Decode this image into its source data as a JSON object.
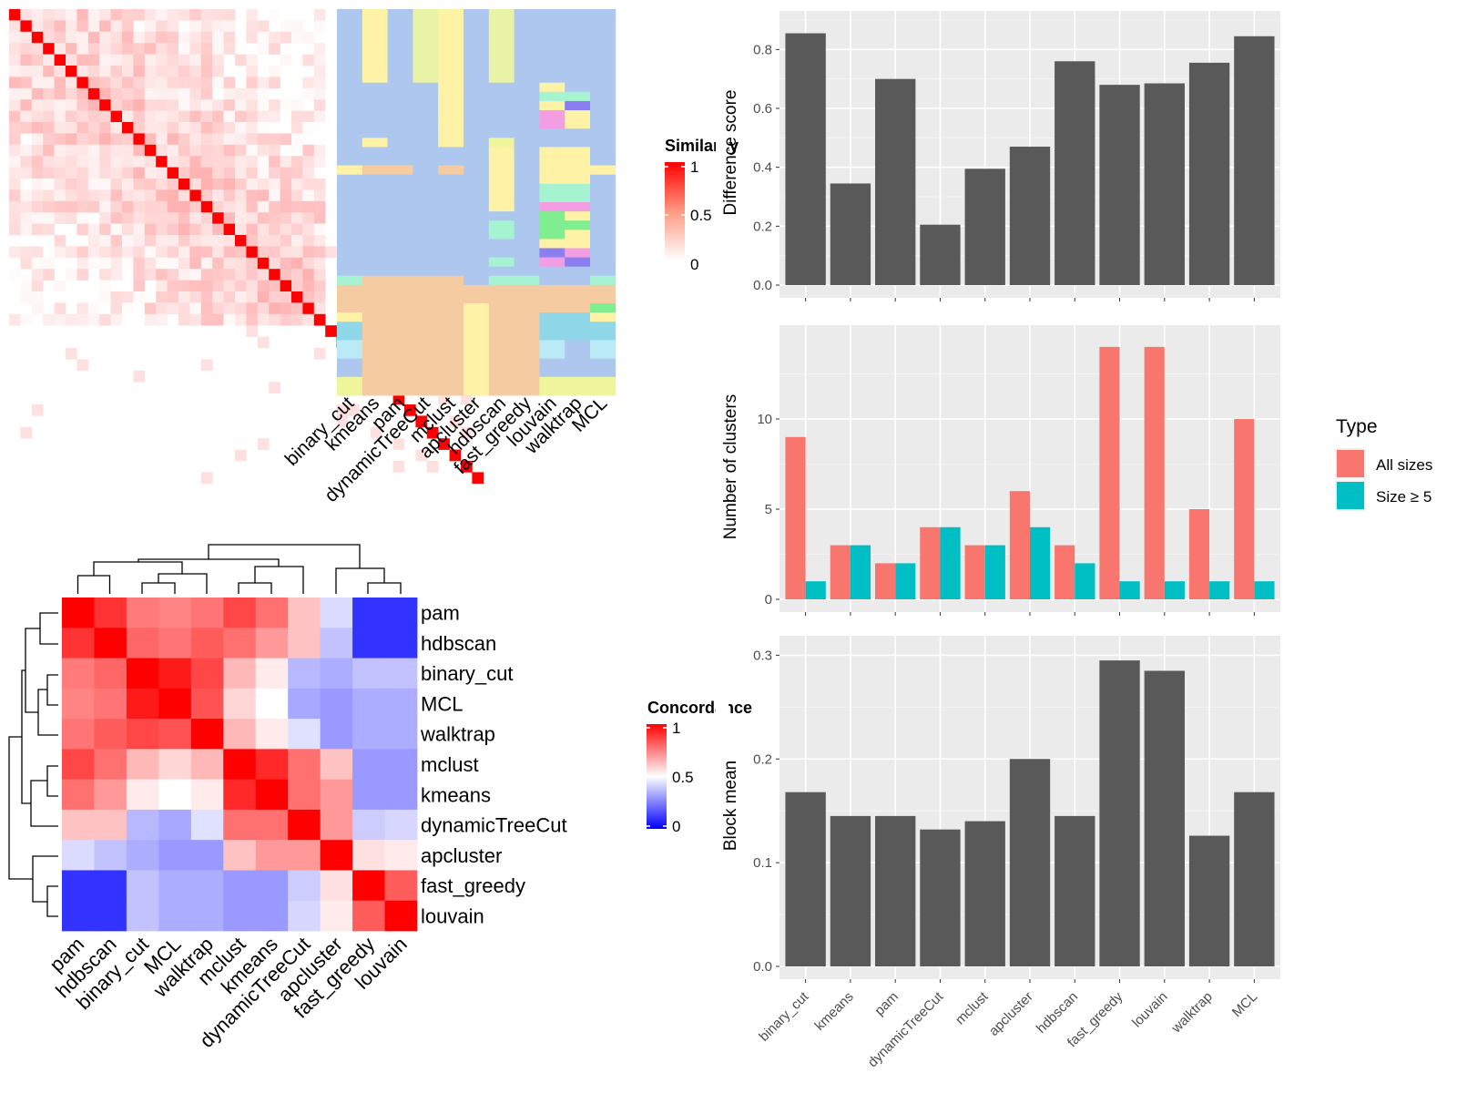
{
  "chart_data": [
    {
      "type": "heatmap",
      "id": "similarity-matrix",
      "rows": 42,
      "diagonal": 1,
      "legend": {
        "title": "Similarity",
        "ticks": [
          "1",
          "0.5",
          "0"
        ],
        "range": [
          0,
          1
        ]
      },
      "colors": {
        "low": "#ffffff",
        "high": "#ff0000"
      }
    },
    {
      "type": "heatmap",
      "id": "cluster-assignment",
      "columns": [
        "binary_cut",
        "kmeans",
        "pam",
        "dynamicTreeCut",
        "mclust",
        "apcluster",
        "hdbscan",
        "fast_greedy",
        "louvain",
        "walktrap",
        "MCL"
      ],
      "palette": [
        "#aec7ee",
        "#fdf2a6",
        "#f5cca2",
        "#a6f3d2",
        "#8fd7e9",
        "#f39ee2",
        "#8a7ef0",
        "#b9eaf6",
        "#7fee8f",
        "#eef59a",
        "#e9f3a8"
      ],
      "assignments": [
        [
          0,
          1,
          0,
          10,
          1,
          0,
          10,
          0,
          0,
          0,
          0
        ],
        [
          0,
          1,
          0,
          10,
          1,
          0,
          10,
          0,
          0,
          0,
          0
        ],
        [
          0,
          1,
          0,
          10,
          1,
          0,
          10,
          0,
          0,
          0,
          0
        ],
        [
          0,
          1,
          0,
          10,
          1,
          0,
          10,
          0,
          0,
          0,
          0
        ],
        [
          0,
          1,
          0,
          10,
          1,
          0,
          10,
          0,
          0,
          0,
          0
        ],
        [
          0,
          1,
          0,
          10,
          1,
          0,
          10,
          0,
          0,
          0,
          0
        ],
        [
          0,
          1,
          0,
          10,
          1,
          0,
          10,
          0,
          0,
          0,
          0
        ],
        [
          0,
          1,
          0,
          10,
          1,
          0,
          10,
          0,
          0,
          0,
          0
        ],
        [
          0,
          0,
          0,
          0,
          1,
          0,
          0,
          0,
          1,
          0,
          0
        ],
        [
          0,
          0,
          0,
          0,
          1,
          0,
          0,
          0,
          3,
          3,
          0
        ],
        [
          0,
          0,
          0,
          0,
          1,
          0,
          0,
          0,
          1,
          6,
          0
        ],
        [
          0,
          0,
          0,
          0,
          1,
          0,
          0,
          0,
          5,
          1,
          0
        ],
        [
          0,
          0,
          0,
          0,
          1,
          0,
          0,
          0,
          5,
          1,
          0
        ],
        [
          0,
          0,
          0,
          0,
          1,
          0,
          0,
          0,
          0,
          0,
          0
        ],
        [
          0,
          1,
          0,
          0,
          1,
          0,
          9,
          0,
          0,
          0,
          0
        ],
        [
          0,
          0,
          0,
          0,
          0,
          0,
          1,
          0,
          1,
          1,
          0
        ],
        [
          0,
          0,
          0,
          0,
          0,
          0,
          1,
          0,
          1,
          1,
          0
        ],
        [
          1,
          2,
          2,
          0,
          2,
          0,
          1,
          0,
          1,
          1,
          1
        ],
        [
          0,
          0,
          0,
          0,
          0,
          0,
          1,
          0,
          1,
          1,
          0
        ],
        [
          0,
          0,
          0,
          0,
          0,
          0,
          1,
          0,
          3,
          3,
          0
        ],
        [
          0,
          0,
          0,
          0,
          0,
          0,
          1,
          0,
          3,
          3,
          0
        ],
        [
          0,
          0,
          0,
          0,
          0,
          0,
          1,
          0,
          5,
          5,
          0
        ],
        [
          0,
          0,
          0,
          0,
          0,
          0,
          0,
          0,
          8,
          1,
          0
        ],
        [
          0,
          0,
          0,
          0,
          0,
          0,
          3,
          0,
          8,
          8,
          0
        ],
        [
          0,
          0,
          0,
          0,
          0,
          0,
          3,
          0,
          8,
          1,
          0
        ],
        [
          0,
          0,
          0,
          0,
          0,
          0,
          0,
          0,
          1,
          1,
          0
        ],
        [
          0,
          0,
          0,
          0,
          0,
          0,
          0,
          0,
          6,
          5,
          0
        ],
        [
          0,
          0,
          0,
          0,
          0,
          0,
          3,
          0,
          5,
          6,
          0
        ],
        [
          0,
          0,
          0,
          0,
          0,
          0,
          0,
          0,
          0,
          0,
          0
        ],
        [
          3,
          2,
          2,
          2,
          2,
          0,
          3,
          3,
          0,
          0,
          3
        ],
        [
          2,
          2,
          2,
          2,
          2,
          2,
          2,
          2,
          2,
          2,
          2
        ],
        [
          2,
          2,
          2,
          2,
          2,
          2,
          2,
          2,
          2,
          2,
          2
        ],
        [
          2,
          2,
          2,
          2,
          2,
          1,
          2,
          2,
          2,
          2,
          8
        ],
        [
          1,
          2,
          2,
          2,
          2,
          1,
          2,
          2,
          4,
          4,
          1
        ],
        [
          4,
          2,
          2,
          2,
          2,
          1,
          2,
          2,
          4,
          4,
          4
        ],
        [
          4,
          2,
          2,
          2,
          2,
          1,
          2,
          2,
          4,
          4,
          4
        ],
        [
          7,
          2,
          2,
          2,
          2,
          1,
          2,
          2,
          7,
          0,
          7
        ],
        [
          7,
          2,
          2,
          2,
          2,
          1,
          2,
          2,
          7,
          0,
          7
        ],
        [
          0,
          2,
          2,
          2,
          2,
          1,
          2,
          2,
          0,
          0,
          0
        ],
        [
          0,
          2,
          2,
          2,
          2,
          1,
          2,
          2,
          0,
          0,
          0
        ],
        [
          9,
          2,
          2,
          2,
          2,
          1,
          2,
          2,
          9,
          9,
          9
        ],
        [
          9,
          2,
          2,
          2,
          2,
          1,
          2,
          2,
          9,
          9,
          9
        ]
      ]
    },
    {
      "type": "heatmap",
      "id": "concordance-heatmap",
      "rows": [
        "pam",
        "hdbscan",
        "binary_cut",
        "MCL",
        "walktrap",
        "mclust",
        "kmeans",
        "dynamicTreeCut",
        "apcluster",
        "fast_greedy",
        "louvain"
      ],
      "columns": [
        "pam",
        "hdbscan",
        "binary_cut",
        "MCL",
        "walktrap",
        "mclust",
        "kmeans",
        "dynamicTreeCut",
        "apcluster",
        "fast_greedy",
        "louvain"
      ],
      "values": [
        [
          1.0,
          0.9,
          0.76,
          0.74,
          0.77,
          0.86,
          0.78,
          0.62,
          0.43,
          0.1,
          0.1
        ],
        [
          0.9,
          1.0,
          0.8,
          0.77,
          0.82,
          0.78,
          0.7,
          0.62,
          0.38,
          0.1,
          0.1
        ],
        [
          0.76,
          0.8,
          1.0,
          0.95,
          0.86,
          0.64,
          0.54,
          0.36,
          0.34,
          0.38,
          0.38
        ],
        [
          0.74,
          0.77,
          0.95,
          1.0,
          0.84,
          0.58,
          0.5,
          0.33,
          0.3,
          0.34,
          0.34
        ],
        [
          0.77,
          0.82,
          0.86,
          0.84,
          1.0,
          0.64,
          0.54,
          0.44,
          0.3,
          0.34,
          0.34
        ],
        [
          0.86,
          0.78,
          0.64,
          0.58,
          0.64,
          1.0,
          0.92,
          0.78,
          0.62,
          0.3,
          0.3
        ],
        [
          0.78,
          0.7,
          0.54,
          0.5,
          0.54,
          0.92,
          1.0,
          0.78,
          0.7,
          0.3,
          0.3
        ],
        [
          0.62,
          0.62,
          0.36,
          0.33,
          0.44,
          0.78,
          0.78,
          1.0,
          0.7,
          0.4,
          0.42
        ],
        [
          0.43,
          0.38,
          0.34,
          0.3,
          0.3,
          0.62,
          0.7,
          0.7,
          1.0,
          0.56,
          0.54
        ],
        [
          0.1,
          0.1,
          0.38,
          0.34,
          0.34,
          0.3,
          0.3,
          0.4,
          0.56,
          1.0,
          0.82
        ],
        [
          0.1,
          0.1,
          0.38,
          0.34,
          0.34,
          0.3,
          0.3,
          0.42,
          0.54,
          0.82,
          1.0
        ]
      ],
      "legend": {
        "title": "Concordance",
        "ticks": [
          "1",
          "0.5",
          "0"
        ],
        "range": [
          0,
          1
        ]
      },
      "colors": {
        "low": "#0000ff",
        "mid": "#ffffff",
        "high": "#ff0000"
      }
    },
    {
      "type": "bar",
      "id": "difference-score",
      "categories": [
        "binary_cut",
        "kmeans",
        "pam",
        "dynamicTreeCut",
        "mclust",
        "apcluster",
        "hdbscan",
        "fast_greedy",
        "louvain",
        "walktrap",
        "MCL"
      ],
      "values": [
        0.855,
        0.345,
        0.7,
        0.205,
        0.395,
        0.47,
        0.76,
        0.68,
        0.685,
        0.755,
        0.845
      ],
      "ylabel": "Difference score",
      "ylim": [
        0,
        0.9
      ],
      "yticks": [
        "0.0",
        "0.2",
        "0.4",
        "0.6",
        "0.8"
      ],
      "grid": true,
      "color": "#595959"
    },
    {
      "type": "bar",
      "id": "number-of-clusters",
      "categories": [
        "binary_cut",
        "kmeans",
        "pam",
        "dynamicTreeCut",
        "mclust",
        "apcluster",
        "hdbscan",
        "fast_greedy",
        "louvain",
        "walktrap",
        "MCL"
      ],
      "series": [
        {
          "name": "All sizes",
          "values": [
            9,
            3,
            2,
            4,
            3,
            6,
            3,
            14,
            14,
            5,
            10
          ],
          "color": "#f8766d"
        },
        {
          "name": "Size ≥ 5",
          "values": [
            1,
            3,
            2,
            4,
            3,
            4,
            2,
            1,
            1,
            1,
            1
          ],
          "color": "#00bfc4"
        }
      ],
      "ylabel": "Number of clusters",
      "ylim": [
        0,
        14.7
      ],
      "yticks": [
        "0",
        "5",
        "10"
      ],
      "legend": {
        "title": "Type",
        "position": "right"
      },
      "grid": true
    },
    {
      "type": "bar",
      "id": "block-mean",
      "categories": [
        "binary_cut",
        "kmeans",
        "pam",
        "dynamicTreeCut",
        "mclust",
        "apcluster",
        "hdbscan",
        "fast_greedy",
        "louvain",
        "walktrap",
        "MCL"
      ],
      "values": [
        0.168,
        0.145,
        0.145,
        0.132,
        0.14,
        0.2,
        0.145,
        0.295,
        0.285,
        0.126,
        0.168
      ],
      "ylabel": "Block mean",
      "ylim": [
        0,
        0.31
      ],
      "yticks": [
        "0.0",
        "0.1",
        "0.2",
        "0.3"
      ],
      "grid": true,
      "color": "#595959"
    }
  ]
}
